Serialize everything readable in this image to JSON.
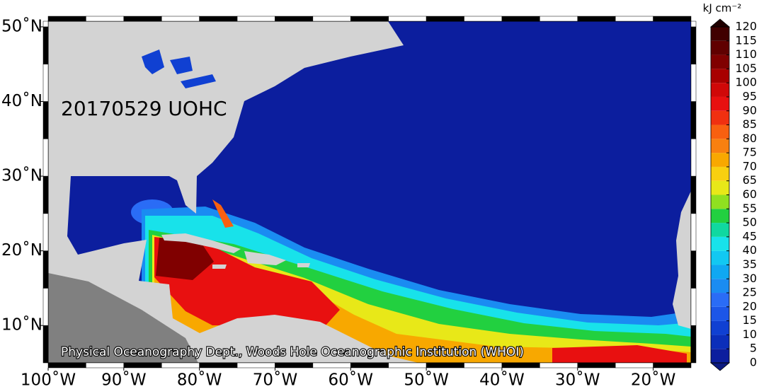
{
  "map": {
    "title": "20170529 UOHC",
    "credit": "Physical Oceanography Dept., Woods Hole Oceanographic Institution (WHOI)",
    "lonlim": [
      -100,
      -15
    ],
    "latlim": [
      5,
      50.75
    ],
    "lonticks": [
      {
        "value": -100,
        "label": "100˚W"
      },
      {
        "value": -90,
        "label": "90˚W"
      },
      {
        "value": -80,
        "label": "80˚W"
      },
      {
        "value": -70,
        "label": "70˚W"
      },
      {
        "value": -60,
        "label": "60˚W"
      },
      {
        "value": -50,
        "label": "50˚W"
      },
      {
        "value": -40,
        "label": "40˚W"
      },
      {
        "value": -30,
        "label": "30˚W"
      },
      {
        "value": -20,
        "label": "20˚W"
      }
    ],
    "latticks": [
      {
        "value": 50,
        "label": "50˚N"
      },
      {
        "value": 40,
        "label": "40˚N"
      },
      {
        "value": 30,
        "label": "30˚N"
      },
      {
        "value": 20,
        "label": "20˚N"
      },
      {
        "value": 10,
        "label": "10˚N"
      }
    ],
    "colorbar": {
      "unit": "kJ cm⁻²",
      "lim": [
        0,
        120
      ],
      "ticks": [
        0,
        5,
        10,
        15,
        20,
        25,
        30,
        35,
        40,
        45,
        50,
        55,
        60,
        65,
        70,
        75,
        80,
        85,
        90,
        95,
        100,
        105,
        110,
        115,
        120
      ],
      "colors": [
        "#0c1e9e",
        "#0b2eba",
        "#1040d2",
        "#1c56e8",
        "#2a6cf6",
        "#1a8cf2",
        "#10a8f2",
        "#12c8f2",
        "#18e2ea",
        "#10d8a0",
        "#22d040",
        "#90e020",
        "#e8e818",
        "#f8d010",
        "#f8a800",
        "#f88010",
        "#f86010",
        "#f03010",
        "#e81010",
        "#d00808",
        "#a80000",
        "#800000",
        "#600000",
        "#400000"
      ],
      "under": "#0c1a80",
      "over": "#200000"
    }
  }
}
